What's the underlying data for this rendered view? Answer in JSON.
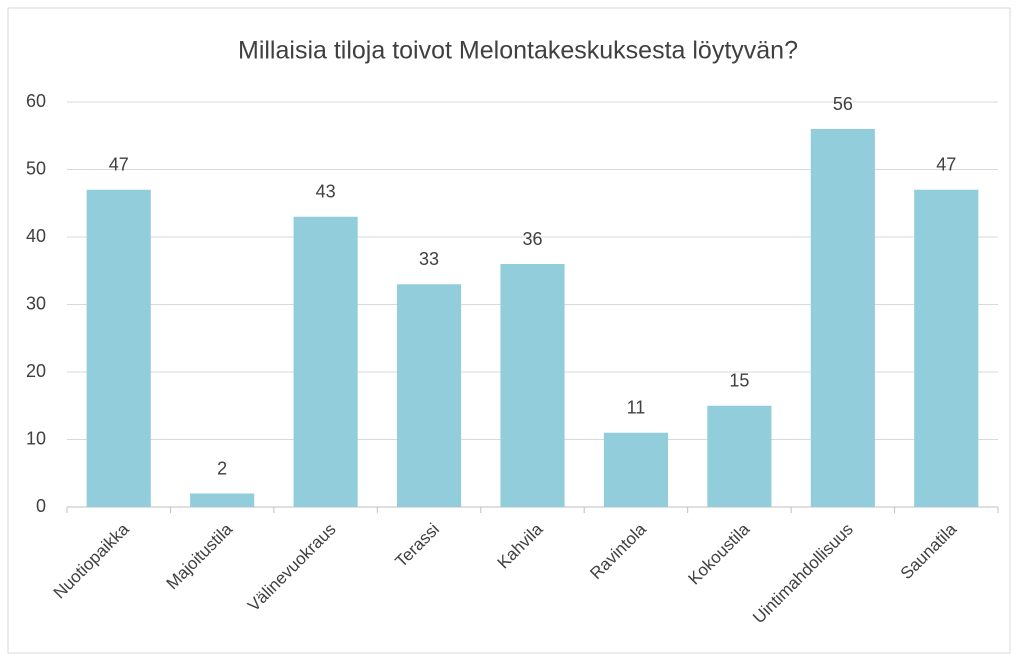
{
  "chart_data": {
    "type": "bar",
    "title": "Millaisia tiloja toivot Melontakeskuksesta löytyvän?",
    "categories": [
      "Nuotiopaikka",
      "Majoitustila",
      "Välinevuokraus",
      "Terassi",
      "Kahvila",
      "Ravintola",
      "Kokoustila",
      "Uintimahdollisuus",
      "Saunatila"
    ],
    "values": [
      47,
      2,
      43,
      33,
      36,
      11,
      15,
      56,
      47
    ],
    "color": "#92cddc",
    "ylim": [
      0,
      60
    ],
    "yticks": [
      0,
      10,
      20,
      30,
      40,
      50,
      60
    ],
    "grid": true
  }
}
